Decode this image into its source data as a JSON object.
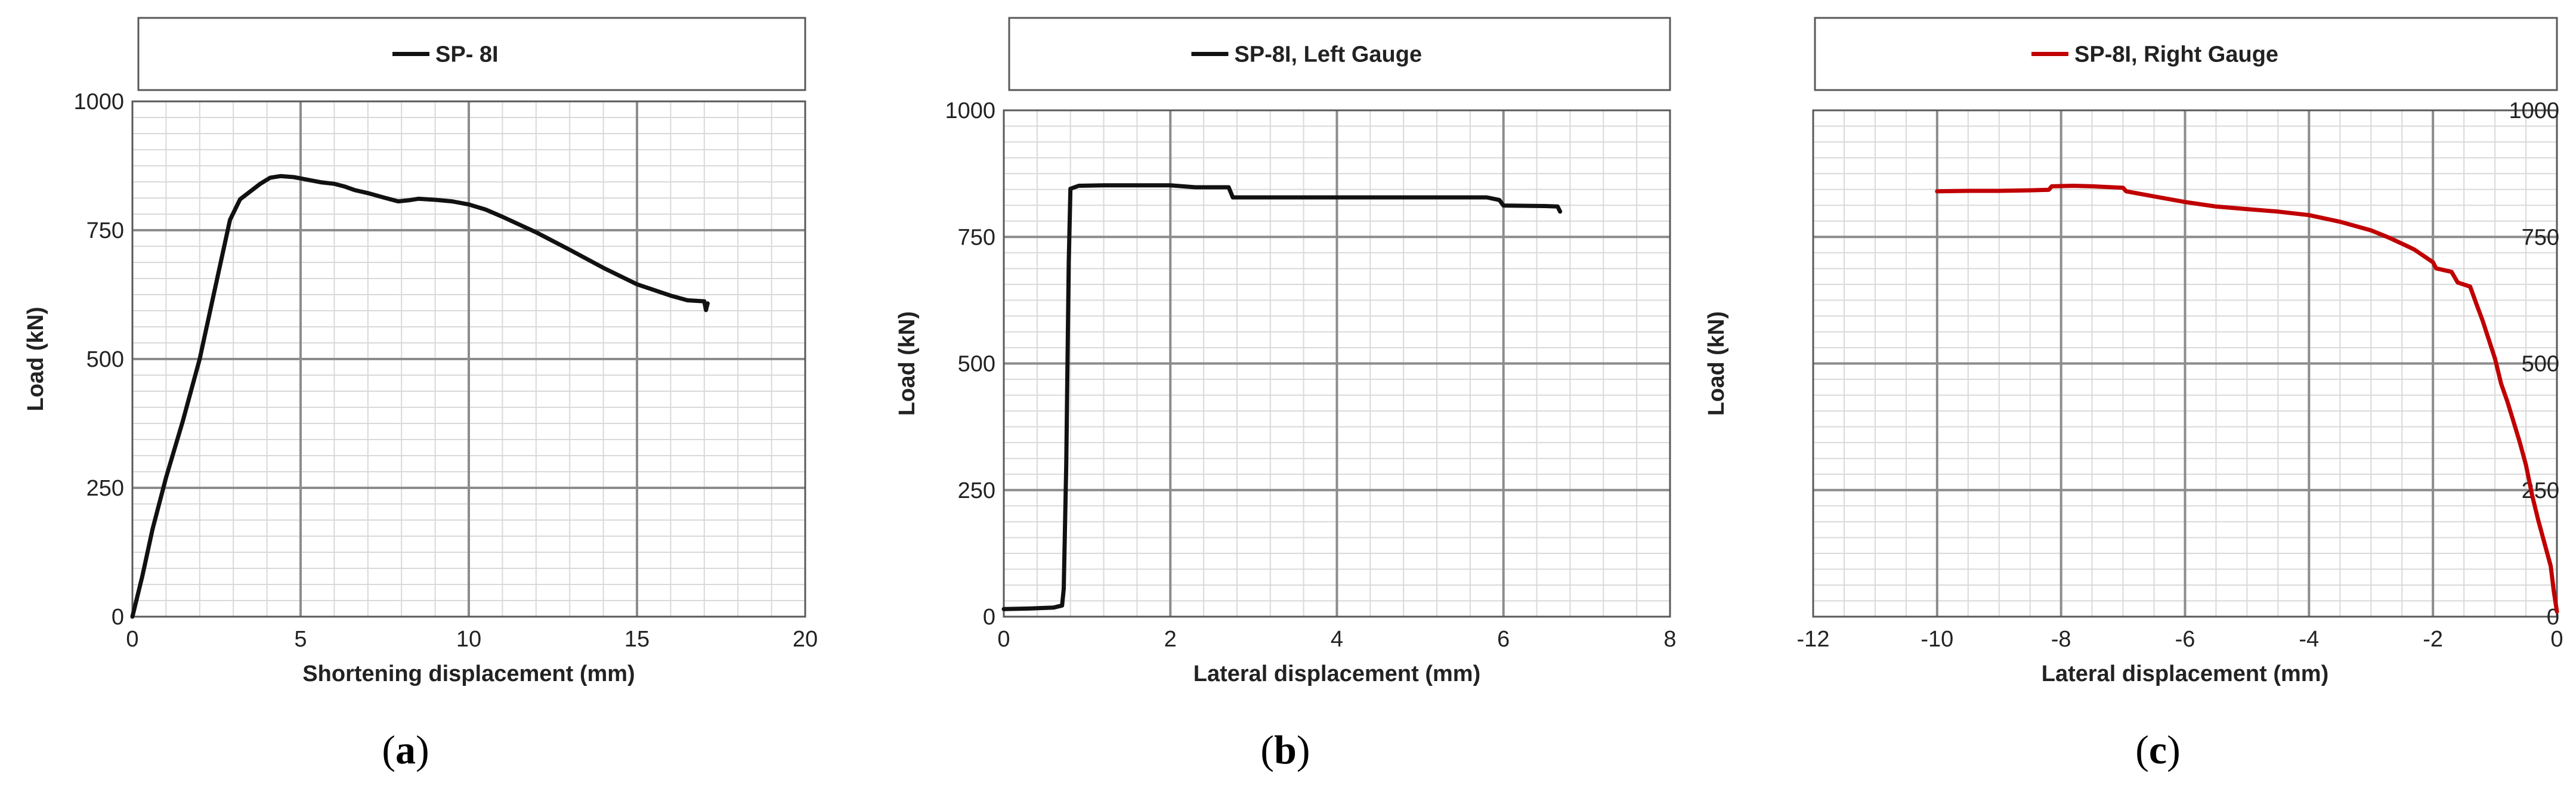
{
  "chart_data": [
    {
      "type": "line",
      "legend": "SP- 8I",
      "caption_letter": "a",
      "xlabel": "Shortening displacement (mm)",
      "ylabel": "Load (kN)",
      "xlim": [
        0,
        20
      ],
      "ylim": [
        0,
        1000
      ],
      "x_ticks": [
        "0",
        "5",
        "10",
        "15",
        "20"
      ],
      "y_ticks": [
        "0",
        "250",
        "500",
        "750",
        "1000"
      ],
      "y_axis_side": "left",
      "color": "#111111",
      "series": [
        {
          "x": [
            0,
            0.3,
            0.6,
            1.0,
            1.5,
            2.0,
            2.3,
            2.6,
            2.9,
            3.2,
            3.5,
            3.8,
            4.1,
            4.4,
            4.8,
            5.2,
            5.6,
            6.0,
            6.3,
            6.6,
            7.0,
            7.5,
            7.9,
            8.2,
            8.5,
            9.0,
            9.5,
            10.0,
            10.5,
            11.0,
            12.0,
            13.0,
            14.0,
            15.0,
            16.0,
            16.5,
            17.0,
            17.05,
            17.1
          ],
          "y": [
            0,
            80,
            170,
            270,
            380,
            500,
            590,
            680,
            770,
            810,
            825,
            840,
            852,
            855,
            853,
            848,
            843,
            840,
            835,
            828,
            822,
            813,
            806,
            808,
            811,
            809,
            806,
            800,
            790,
            776,
            746,
            712,
            677,
            645,
            623,
            614,
            612,
            595,
            608
          ]
        }
      ]
    },
    {
      "type": "line",
      "legend": "SP-8I, Left Gauge",
      "caption_letter": "b",
      "xlabel": "Lateral displacement (mm)",
      "ylabel": "Load (kN)",
      "xlim": [
        0,
        8
      ],
      "ylim": [
        0,
        1000
      ],
      "x_ticks": [
        "0",
        "2",
        "4",
        "6",
        "8"
      ],
      "y_ticks": [
        "0",
        "250",
        "500",
        "750",
        "1000"
      ],
      "y_axis_side": "left",
      "color": "#111111",
      "series": [
        {
          "x": [
            0,
            0.3,
            0.6,
            0.7,
            0.72,
            0.75,
            0.78,
            0.8,
            0.9,
            1.2,
            2.0,
            2.3,
            2.7,
            2.75,
            3.0,
            4.0,
            5.0,
            5.8,
            5.95,
            6.0,
            6.5,
            6.65,
            6.68
          ],
          "y": [
            15,
            16,
            18,
            22,
            55,
            300,
            700,
            845,
            851,
            852,
            852,
            848,
            848,
            828,
            828,
            828,
            828,
            828,
            823,
            812,
            811,
            810,
            800
          ]
        }
      ]
    },
    {
      "type": "line",
      "legend": "SP-8I, Right Gauge",
      "caption_letter": "c",
      "xlabel": "Lateral displacement (mm)",
      "ylabel": "Load (kN)",
      "xlim": [
        -12,
        0
      ],
      "ylim": [
        0,
        1000
      ],
      "x_ticks": [
        "-12",
        "-10",
        "-8",
        "-6",
        "-4",
        "-2",
        "0"
      ],
      "y_ticks": [
        "0",
        "250",
        "500",
        "750",
        "1000"
      ],
      "y_axis_side": "right",
      "color": "#c00000",
      "series": [
        {
          "x": [
            -10.0,
            -9.5,
            -9.0,
            -8.5,
            -8.2,
            -8.15,
            -7.8,
            -7.5,
            -7.0,
            -6.95,
            -6.5,
            -6.0,
            -5.5,
            -5.0,
            -4.5,
            -4.0,
            -3.5,
            -3.0,
            -2.7,
            -2.4,
            -2.3,
            -2.0,
            -1.95,
            -1.7,
            -1.6,
            -1.4,
            -1.3,
            -1.2,
            -1.0,
            -0.9,
            -0.8,
            -0.7,
            -0.6,
            -0.5,
            -0.4,
            -0.3,
            -0.2,
            -0.1,
            -0.05,
            0
          ],
          "y": [
            840,
            841,
            841,
            842,
            843,
            850,
            851,
            850,
            847,
            840,
            830,
            819,
            810,
            805,
            800,
            793,
            780,
            763,
            748,
            731,
            725,
            700,
            688,
            681,
            660,
            652,
            618,
            585,
            510,
            460,
            425,
            385,
            345,
            300,
            240,
            190,
            145,
            100,
            50,
            10
          ]
        }
      ]
    }
  ]
}
